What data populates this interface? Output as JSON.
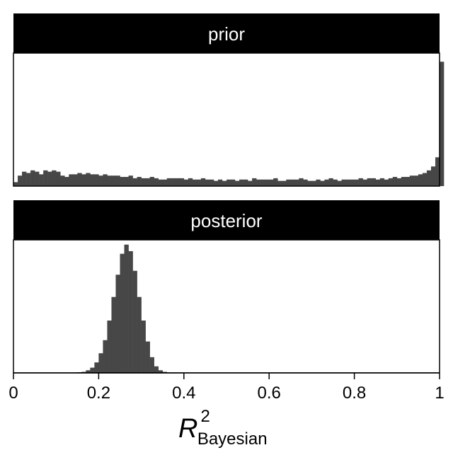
{
  "chart_data": [
    {
      "type": "bar",
      "panel": "prior",
      "title": "prior",
      "xlim": [
        0,
        1
      ],
      "bin_width": 0.01,
      "y_relative_max": 1.0,
      "values": [
        0.03,
        0.08,
        0.11,
        0.1,
        0.12,
        0.11,
        0.09,
        0.12,
        0.11,
        0.12,
        0.11,
        0.08,
        0.07,
        0.09,
        0.09,
        0.1,
        0.09,
        0.1,
        0.09,
        0.09,
        0.08,
        0.09,
        0.08,
        0.08,
        0.08,
        0.07,
        0.07,
        0.08,
        0.06,
        0.07,
        0.06,
        0.06,
        0.07,
        0.06,
        0.05,
        0.05,
        0.06,
        0.06,
        0.06,
        0.06,
        0.05,
        0.06,
        0.05,
        0.05,
        0.06,
        0.05,
        0.05,
        0.04,
        0.05,
        0.04,
        0.05,
        0.05,
        0.04,
        0.05,
        0.05,
        0.04,
        0.06,
        0.05,
        0.05,
        0.05,
        0.05,
        0.06,
        0.04,
        0.04,
        0.05,
        0.05,
        0.05,
        0.06,
        0.05,
        0.04,
        0.04,
        0.05,
        0.04,
        0.05,
        0.06,
        0.05,
        0.04,
        0.05,
        0.05,
        0.05,
        0.05,
        0.06,
        0.05,
        0.06,
        0.06,
        0.05,
        0.06,
        0.05,
        0.06,
        0.07,
        0.06,
        0.07,
        0.07,
        0.08,
        0.08,
        0.09,
        0.1,
        0.12,
        0.15,
        0.22,
        0.95
      ]
    },
    {
      "type": "bar",
      "panel": "posterior",
      "title": "posterior",
      "xlim": [
        0,
        1
      ],
      "bin_width": 0.01,
      "y_relative_max": 1.0,
      "values": [
        0,
        0,
        0,
        0,
        0,
        0,
        0,
        0,
        0,
        0,
        0,
        0,
        0,
        0.002,
        0.003,
        0.005,
        0.008,
        0.02,
        0.04,
        0.08,
        0.15,
        0.25,
        0.4,
        0.58,
        0.75,
        0.91,
        0.98,
        0.93,
        0.78,
        0.58,
        0.4,
        0.24,
        0.12,
        0.05,
        0.02,
        0.008,
        0.003,
        0.002,
        0,
        0,
        0,
        0,
        0,
        0,
        0,
        0,
        0,
        0,
        0,
        0,
        0,
        0,
        0,
        0,
        0,
        0,
        0,
        0,
        0,
        0,
        0,
        0,
        0,
        0,
        0,
        0,
        0,
        0,
        0,
        0,
        0,
        0,
        0,
        0,
        0,
        0,
        0,
        0,
        0,
        0,
        0,
        0,
        0,
        0,
        0,
        0,
        0,
        0,
        0,
        0,
        0,
        0,
        0,
        0,
        0,
        0,
        0,
        0,
        0,
        0
      ]
    }
  ],
  "x_axis": {
    "ticks": [
      0,
      0.2,
      0.4,
      0.6,
      0.8,
      1
    ],
    "tick_labels": [
      "0",
      "0.2",
      "0.4",
      "0.6",
      "0.8",
      "1"
    ],
    "label_main": "R",
    "label_superscript": "2",
    "label_subscript": "Bayesian"
  },
  "colors": {
    "bars": "#474747",
    "strip": "#000000",
    "strip_text": "#ffffff",
    "panel_border": "#000000"
  }
}
